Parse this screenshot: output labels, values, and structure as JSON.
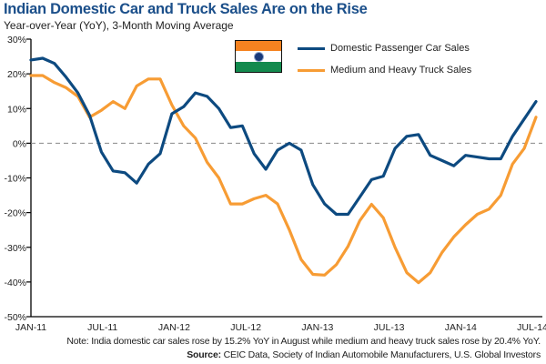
{
  "chart_data": {
    "type": "line",
    "title": "Indian Domestic Car and Truck Sales Are on the Rise",
    "subtitle": "Year-over-Year (YoY), 3-Month Moving Average",
    "xlabel": "",
    "ylabel": "",
    "ylim": [
      -50,
      30
    ],
    "yticks": [
      30,
      20,
      10,
      0,
      -10,
      -20,
      -30,
      -40,
      -50
    ],
    "ytick_labels": [
      "30%",
      "20%",
      "10%",
      "0%",
      "-10%",
      "-20%",
      "-30%",
      "-40%",
      "-50%"
    ],
    "x_start": "Jan 2011",
    "x_end": "Aug 2014",
    "x_frequency": "monthly",
    "xtick_labels": [
      "JAN-11",
      "JUL-11",
      "JAN-12",
      "JUL-12",
      "JAN-13",
      "JUL-13",
      "JAN-14",
      "JUL-14"
    ],
    "xtick_month_index": [
      0,
      6,
      12,
      18,
      24,
      30,
      36,
      42
    ],
    "zero_line": "dashed",
    "grid": false,
    "legend_position": "top-right",
    "series": [
      {
        "name": "Domestic Passenger Car Sales",
        "color": "#0d4a80",
        "values": [
          24,
          24.5,
          23,
          19,
          14.5,
          8,
          -2.5,
          -8,
          -8.5,
          -11.5,
          -6,
          -3,
          8.5,
          10.5,
          14.5,
          13.5,
          10,
          4.5,
          5,
          -3,
          -7.5,
          -2,
          0,
          -2,
          -12,
          -17.5,
          -20.5,
          -20.5,
          -15.5,
          -10.5,
          -9.5,
          -1.5,
          2,
          2.5,
          -3.5,
          -5,
          -6.5,
          -3.5,
          -4,
          -4.5,
          -4.5,
          2,
          7,
          12
        ]
      },
      {
        "name": "Medium and Heavy Truck Sales",
        "color": "#f79c34",
        "values": [
          19.5,
          19.5,
          17.5,
          16,
          13.5,
          7.5,
          9.5,
          12,
          10,
          16.5,
          18.5,
          18.5,
          11,
          5,
          1.5,
          -5.5,
          -10,
          -17.5,
          -17.5,
          -16,
          -15,
          -17.5,
          -25,
          -33.5,
          -37.8,
          -38,
          -35,
          -29.7,
          -22.3,
          -17.6,
          -21.5,
          -30,
          -37.3,
          -40.2,
          -37.3,
          -31.5,
          -27,
          -23.5,
          -20.5,
          -19,
          -15,
          -6,
          -1.5,
          7.5
        ]
      }
    ]
  },
  "legend": {
    "flag": "india-flag",
    "flag_colors": {
      "saffron": "#f58220",
      "white": "#ffffff",
      "green": "#138a4e",
      "chakra": "#1a3a7a"
    }
  },
  "footer": {
    "note": "Note: India domestic car sales rose by 15.2% YoY in August while medium and heavy truck sales rose by 20.4% YoY.",
    "source_label": "Source:",
    "source_text": " CEIC Data, Society of Indian Automobile Manufacturers, U.S. Global Investors"
  }
}
